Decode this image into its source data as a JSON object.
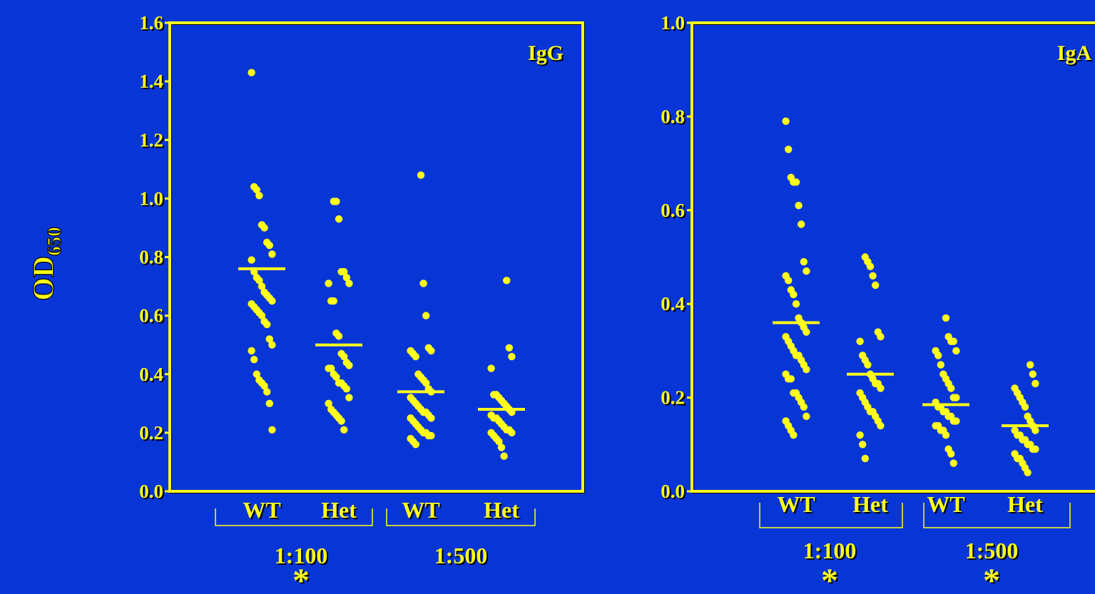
{
  "colors": {
    "background": "#0836d6",
    "foreground": "#ffff1a"
  },
  "shared": {
    "ylabel_main": "OD",
    "ylabel_sub": "650",
    "significance_mark": "*"
  },
  "chart_data": [
    {
      "type": "scatter",
      "panel_label": "IgG",
      "ylim": [
        0,
        1.6
      ],
      "yticks": [
        "0.0",
        "0.2",
        "0.4",
        "0.6",
        "0.8",
        "1.0",
        "1.2",
        "1.4",
        "1.6"
      ],
      "groups": [
        "WT",
        "Het",
        "WT",
        "Het"
      ],
      "dilutions": [
        "1:100",
        "1:500"
      ],
      "significant": [
        true,
        false
      ],
      "means": [
        0.76,
        0.5,
        0.34,
        0.28
      ],
      "series": [
        {
          "group": "WT",
          "dilution": "1:100",
          "values": [
            1.43,
            1.04,
            1.03,
            1.01,
            0.91,
            0.9,
            0.85,
            0.84,
            0.81,
            0.79,
            0.75,
            0.73,
            0.72,
            0.7,
            0.68,
            0.67,
            0.66,
            0.65,
            0.64,
            0.63,
            0.62,
            0.61,
            0.6,
            0.58,
            0.57,
            0.52,
            0.5,
            0.48,
            0.45,
            0.4,
            0.38,
            0.37,
            0.36,
            0.34,
            0.3,
            0.21
          ]
        },
        {
          "group": "Het",
          "dilution": "1:100",
          "values": [
            0.99,
            0.99,
            0.93,
            0.75,
            0.75,
            0.73,
            0.71,
            0.71,
            0.65,
            0.65,
            0.54,
            0.53,
            0.47,
            0.46,
            0.44,
            0.43,
            0.42,
            0.42,
            0.4,
            0.39,
            0.37,
            0.37,
            0.36,
            0.35,
            0.32,
            0.3,
            0.28,
            0.27,
            0.26,
            0.25,
            0.24,
            0.21
          ]
        },
        {
          "group": "WT",
          "dilution": "1:500",
          "values": [
            1.08,
            0.71,
            0.6,
            0.49,
            0.48,
            0.48,
            0.47,
            0.46,
            0.4,
            0.39,
            0.38,
            0.37,
            0.35,
            0.34,
            0.32,
            0.31,
            0.3,
            0.29,
            0.28,
            0.27,
            0.27,
            0.26,
            0.25,
            0.25,
            0.24,
            0.23,
            0.22,
            0.21,
            0.2,
            0.2,
            0.19,
            0.19,
            0.18,
            0.17,
            0.16
          ]
        },
        {
          "group": "Het",
          "dilution": "1:500",
          "values": [
            0.72,
            0.49,
            0.46,
            0.42,
            0.33,
            0.33,
            0.32,
            0.31,
            0.3,
            0.29,
            0.28,
            0.27,
            0.26,
            0.25,
            0.25,
            0.24,
            0.23,
            0.22,
            0.21,
            0.21,
            0.2,
            0.2,
            0.19,
            0.18,
            0.17,
            0.15,
            0.12
          ]
        }
      ]
    },
    {
      "type": "scatter",
      "panel_label": "IgA",
      "ylim": [
        0,
        1.0
      ],
      "yticks": [
        "0.0",
        "0.2",
        "0.4",
        "0.6",
        "0.8",
        "1.0"
      ],
      "groups": [
        "WT",
        "Het",
        "WT",
        "Het"
      ],
      "dilutions": [
        "1:100",
        "1:500"
      ],
      "significant": [
        true,
        true
      ],
      "means": [
        0.36,
        0.25,
        0.185,
        0.14
      ],
      "series": [
        {
          "group": "WT",
          "dilution": "1:100",
          "values": [
            0.79,
            0.73,
            0.67,
            0.66,
            0.66,
            0.61,
            0.57,
            0.49,
            0.47,
            0.46,
            0.45,
            0.43,
            0.42,
            0.4,
            0.37,
            0.36,
            0.35,
            0.34,
            0.33,
            0.32,
            0.31,
            0.3,
            0.29,
            0.29,
            0.28,
            0.27,
            0.26,
            0.25,
            0.24,
            0.24,
            0.21,
            0.21,
            0.2,
            0.19,
            0.18,
            0.16,
            0.15,
            0.14,
            0.13,
            0.12
          ]
        },
        {
          "group": "Het",
          "dilution": "1:100",
          "values": [
            0.5,
            0.49,
            0.48,
            0.46,
            0.44,
            0.34,
            0.33,
            0.32,
            0.29,
            0.28,
            0.27,
            0.25,
            0.24,
            0.23,
            0.23,
            0.22,
            0.21,
            0.2,
            0.19,
            0.18,
            0.17,
            0.17,
            0.16,
            0.15,
            0.14,
            0.12,
            0.1,
            0.07
          ]
        },
        {
          "group": "WT",
          "dilution": "1:500",
          "values": [
            0.37,
            0.33,
            0.32,
            0.32,
            0.3,
            0.3,
            0.29,
            0.27,
            0.25,
            0.24,
            0.23,
            0.22,
            0.2,
            0.2,
            0.19,
            0.18,
            0.18,
            0.17,
            0.17,
            0.16,
            0.16,
            0.15,
            0.15,
            0.14,
            0.14,
            0.13,
            0.13,
            0.12,
            0.09,
            0.08,
            0.06
          ]
        },
        {
          "group": "Het",
          "dilution": "1:500",
          "values": [
            0.27,
            0.25,
            0.23,
            0.22,
            0.21,
            0.2,
            0.19,
            0.18,
            0.16,
            0.15,
            0.14,
            0.13,
            0.13,
            0.12,
            0.12,
            0.11,
            0.11,
            0.1,
            0.1,
            0.09,
            0.09,
            0.08,
            0.07,
            0.07,
            0.06,
            0.05,
            0.04
          ]
        }
      ]
    }
  ]
}
